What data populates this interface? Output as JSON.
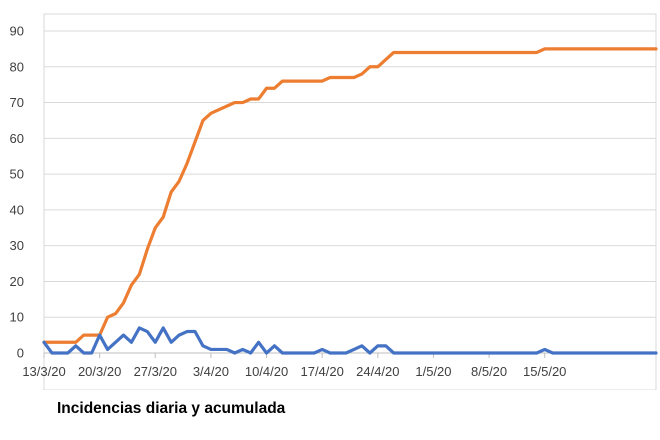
{
  "caption": "Incidencias diaria y acumulada",
  "chart_data": {
    "type": "line",
    "title": "",
    "xlabel": "",
    "ylabel": "",
    "ylim": [
      0,
      90
    ],
    "yticks": [
      0,
      10,
      20,
      30,
      40,
      50,
      60,
      70,
      80,
      90
    ],
    "x_start": "13/3/20",
    "x_end": "19/5/20",
    "x_ticks": [
      "13/3/20",
      "20/3/20",
      "27/3/20",
      "3/4/20",
      "10/4/20",
      "17/4/20",
      "24/4/20",
      "1/5/20",
      "8/5/20",
      "15/5/20"
    ],
    "grid": true,
    "legend": "none",
    "series": [
      {
        "color": "#ED7D31",
        "values": [
          3,
          3,
          3,
          3,
          3,
          5,
          5,
          5,
          10,
          11,
          14,
          19,
          22,
          29,
          35,
          38,
          45,
          48,
          53,
          59,
          65,
          67,
          68,
          69,
          70,
          70,
          71,
          71,
          74,
          74,
          76,
          76,
          76,
          76,
          76,
          76,
          77,
          77,
          77,
          77,
          78,
          80,
          80,
          82,
          84,
          84,
          84,
          84,
          84,
          84,
          84,
          84,
          84,
          84,
          84,
          84,
          84,
          84,
          84,
          84,
          84,
          84,
          84,
          85,
          85,
          85,
          85,
          85,
          85,
          85,
          85,
          85,
          85,
          85,
          85,
          85,
          85,
          85
        ]
      },
      {
        "color": "#4472C4",
        "values": [
          3,
          0,
          0,
          0,
          2,
          0,
          0,
          5,
          1,
          3,
          5,
          3,
          7,
          6,
          3,
          7,
          3,
          5,
          6,
          6,
          2,
          1,
          1,
          1,
          0,
          1,
          0,
          3,
          0,
          2,
          0,
          0,
          0,
          0,
          0,
          1,
          0,
          0,
          0,
          1,
          2,
          0,
          2,
          2,
          0,
          0,
          0,
          0,
          0,
          0,
          0,
          0,
          0,
          0,
          0,
          0,
          0,
          0,
          0,
          0,
          0,
          0,
          0,
          1,
          0,
          0,
          0,
          0,
          0,
          0,
          0,
          0,
          0,
          0,
          0,
          0,
          0,
          0
        ]
      }
    ]
  }
}
